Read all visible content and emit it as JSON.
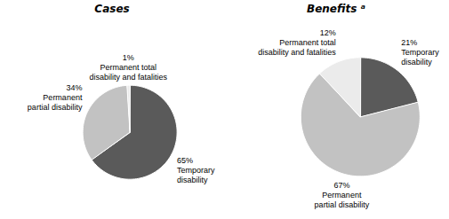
{
  "chart_data": [
    {
      "type": "pie",
      "title": "Cases",
      "categories": [
        "Temporary\ndisability",
        "Permanent\npartial disability",
        "Permanent total\ndisability and fatalities"
      ],
      "values": [
        65,
        34,
        1
      ],
      "value_labels": [
        "65%",
        "34%",
        "1%"
      ],
      "colors": [
        "#5a5a5a",
        "#c2c2c2",
        "#ebebeb"
      ],
      "data_labels": true
    },
    {
      "type": "pie",
      "title": "Benefits ᵃ",
      "categories": [
        "Temporary\ndisability",
        "Permanent\npartial disability",
        "Permanent total\ndisability and fatalities"
      ],
      "values": [
        21,
        67,
        12
      ],
      "value_labels": [
        "21%",
        "67%",
        "12%"
      ],
      "colors": [
        "#5a5a5a",
        "#c2c2c2",
        "#ebebeb"
      ],
      "data_labels": true
    }
  ]
}
